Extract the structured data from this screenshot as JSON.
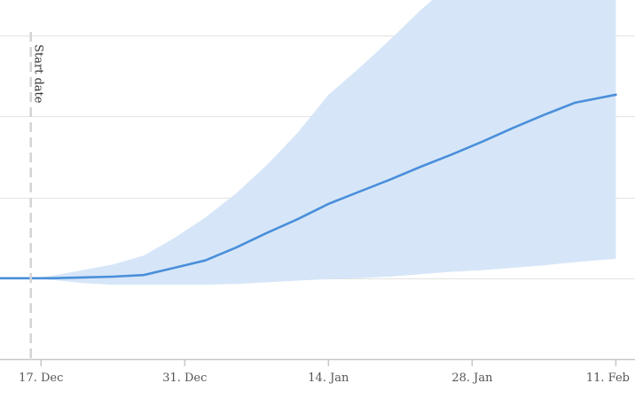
{
  "chart_data": {
    "type": "area",
    "title": "",
    "xlabel": "",
    "ylabel": "",
    "x_axis": {
      "type": "date",
      "range": [
        "2020-12-13",
        "2021-02-12"
      ],
      "ticks": [
        {
          "date": "2020-12-17",
          "label": "17. Dec"
        },
        {
          "date": "2020-12-31",
          "label": "31. Dec"
        },
        {
          "date": "2021-01-14",
          "label": "14. Jan"
        },
        {
          "date": "2021-01-28",
          "label": "28. Jan"
        },
        {
          "date": "2021-02-11",
          "label": "11. Feb"
        }
      ]
    },
    "y_axis": {
      "range": [
        -1,
        3.2
      ],
      "gridlines": [
        -1,
        0,
        1,
        2,
        3
      ],
      "tick_labels_visible": false
    },
    "grid": "horizontal",
    "annotations": [
      {
        "type": "vline",
        "date": "2020-12-16",
        "label": "Start date",
        "style": "dashed"
      }
    ],
    "series": [
      {
        "role": "median-line",
        "color": "#4a8fda",
        "points": [
          [
            "2020-12-13",
            0.0
          ],
          [
            "2020-12-16",
            0.0
          ],
          [
            "2020-12-18",
            0.0
          ],
          [
            "2020-12-21",
            0.01
          ],
          [
            "2020-12-24",
            0.02
          ],
          [
            "2020-12-27",
            0.04
          ],
          [
            "2020-12-30",
            0.13
          ],
          [
            "2021-01-02",
            0.22
          ],
          [
            "2021-01-05",
            0.38
          ],
          [
            "2021-01-08",
            0.56
          ],
          [
            "2021-01-11",
            0.73
          ],
          [
            "2021-01-14",
            0.92
          ],
          [
            "2021-01-17",
            1.07
          ],
          [
            "2021-01-20",
            1.22
          ],
          [
            "2021-01-23",
            1.38
          ],
          [
            "2021-01-26",
            1.53
          ],
          [
            "2021-01-29",
            1.69
          ],
          [
            "2021-02-01",
            1.86
          ],
          [
            "2021-02-04",
            2.02
          ],
          [
            "2021-02-07",
            2.17
          ],
          [
            "2021-02-11",
            2.27
          ]
        ]
      },
      {
        "role": "uncertainty-band",
        "color": "#d6e6f8",
        "upper": [
          [
            "2020-12-16",
            0.0
          ],
          [
            "2020-12-18",
            0.03
          ],
          [
            "2020-12-21",
            0.1
          ],
          [
            "2020-12-24",
            0.17
          ],
          [
            "2020-12-27",
            0.28
          ],
          [
            "2020-12-30",
            0.5
          ],
          [
            "2021-01-02",
            0.75
          ],
          [
            "2021-01-05",
            1.05
          ],
          [
            "2021-01-08",
            1.4
          ],
          [
            "2021-01-11",
            1.8
          ],
          [
            "2021-01-14",
            2.27
          ],
          [
            "2021-01-17",
            2.6
          ],
          [
            "2021-01-20",
            2.95
          ],
          [
            "2021-01-23",
            3.32
          ],
          [
            "2021-01-26",
            3.65
          ],
          [
            "2021-01-29",
            4.0
          ],
          [
            "2021-02-01",
            4.3
          ],
          [
            "2021-02-04",
            4.65
          ],
          [
            "2021-02-07",
            4.98
          ],
          [
            "2021-02-11",
            5.4
          ]
        ],
        "lower": [
          [
            "2020-12-16",
            0.0
          ],
          [
            "2020-12-18",
            -0.02
          ],
          [
            "2020-12-21",
            -0.06
          ],
          [
            "2020-12-24",
            -0.08
          ],
          [
            "2020-12-27",
            -0.08
          ],
          [
            "2020-12-30",
            -0.08
          ],
          [
            "2021-01-02",
            -0.08
          ],
          [
            "2021-01-05",
            -0.07
          ],
          [
            "2021-01-08",
            -0.05
          ],
          [
            "2021-01-11",
            -0.03
          ],
          [
            "2021-01-14",
            -0.01
          ],
          [
            "2021-01-17",
            0.0
          ],
          [
            "2021-01-20",
            0.02
          ],
          [
            "2021-01-23",
            0.05
          ],
          [
            "2021-01-26",
            0.08
          ],
          [
            "2021-01-29",
            0.1
          ],
          [
            "2021-02-01",
            0.13
          ],
          [
            "2021-02-04",
            0.16
          ],
          [
            "2021-02-07",
            0.2
          ],
          [
            "2021-02-11",
            0.24
          ]
        ]
      }
    ]
  }
}
